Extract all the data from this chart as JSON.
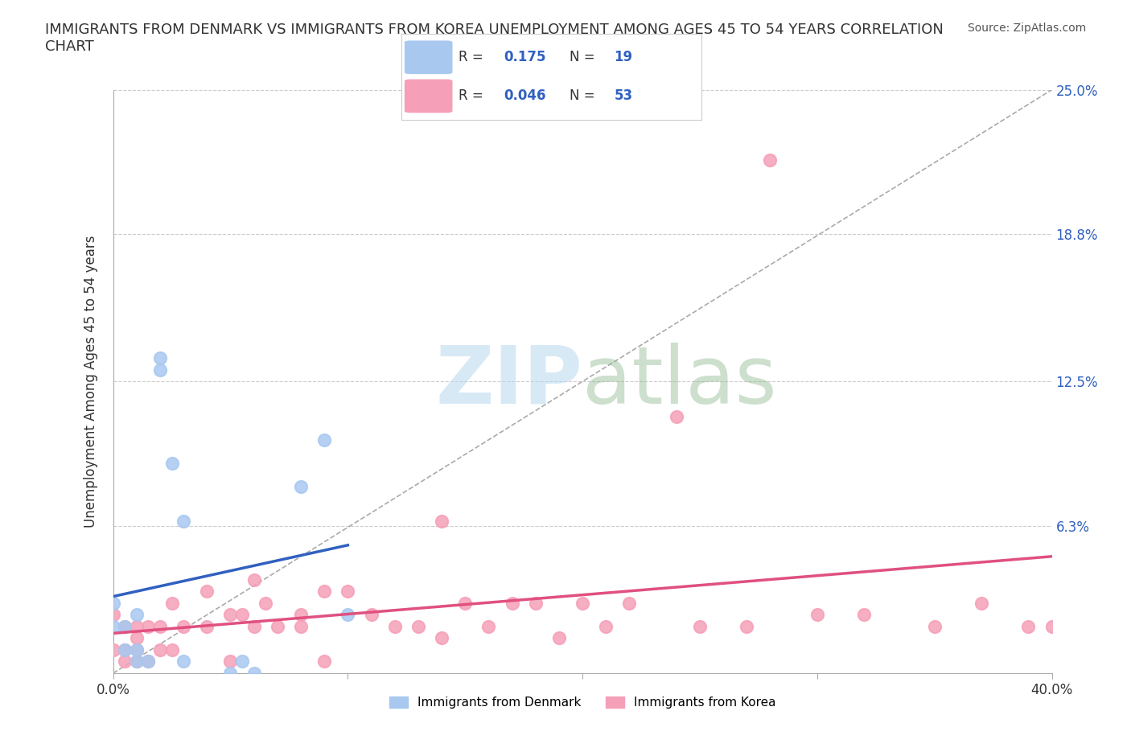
{
  "title": "IMMIGRANTS FROM DENMARK VS IMMIGRANTS FROM KOREA UNEMPLOYMENT AMONG AGES 45 TO 54 YEARS CORRELATION\nCHART",
  "source_text": "Source: ZipAtlas.com",
  "ylabel": "Unemployment Among Ages 45 to 54 years",
  "xlim": [
    0.0,
    0.4
  ],
  "ylim": [
    0.0,
    0.25
  ],
  "xticks": [
    0.0,
    0.1,
    0.2,
    0.3,
    0.4
  ],
  "xticklabels": [
    "0.0%",
    "",
    "",
    "",
    "40.0%"
  ],
  "ytick_positions": [
    0.0,
    0.063,
    0.125,
    0.188,
    0.25
  ],
  "ytick_labels_right": [
    "",
    "6.3%",
    "12.5%",
    "18.8%",
    "25.0%"
  ],
  "denmark_R": 0.175,
  "denmark_N": 19,
  "korea_R": 0.046,
  "korea_N": 53,
  "denmark_color": "#a8c8f0",
  "korea_color": "#f5a0b8",
  "denmark_line_color": "#3060c0",
  "korea_line_color": "#e05080",
  "denmark_scatter_x": [
    0.0,
    0.0,
    0.005,
    0.005,
    0.01,
    0.01,
    0.01,
    0.015,
    0.02,
    0.02,
    0.025,
    0.03,
    0.03,
    0.05,
    0.055,
    0.06,
    0.08,
    0.09,
    0.1
  ],
  "denmark_scatter_y": [
    0.02,
    0.03,
    0.01,
    0.02,
    0.005,
    0.01,
    0.025,
    0.005,
    0.13,
    0.135,
    0.09,
    0.005,
    0.065,
    0.0,
    0.005,
    0.0,
    0.08,
    0.1,
    0.025
  ],
  "korea_scatter_x": [
    0.0,
    0.0,
    0.005,
    0.005,
    0.005,
    0.01,
    0.01,
    0.01,
    0.01,
    0.015,
    0.015,
    0.02,
    0.02,
    0.025,
    0.025,
    0.03,
    0.04,
    0.04,
    0.05,
    0.05,
    0.055,
    0.06,
    0.06,
    0.065,
    0.07,
    0.08,
    0.08,
    0.09,
    0.09,
    0.1,
    0.11,
    0.12,
    0.13,
    0.14,
    0.14,
    0.15,
    0.16,
    0.17,
    0.18,
    0.19,
    0.2,
    0.21,
    0.22,
    0.24,
    0.25,
    0.27,
    0.28,
    0.3,
    0.32,
    0.35,
    0.37,
    0.39,
    0.4
  ],
  "korea_scatter_y": [
    0.01,
    0.025,
    0.005,
    0.01,
    0.02,
    0.005,
    0.01,
    0.015,
    0.02,
    0.005,
    0.02,
    0.01,
    0.02,
    0.01,
    0.03,
    0.02,
    0.02,
    0.035,
    0.005,
    0.025,
    0.025,
    0.02,
    0.04,
    0.03,
    0.02,
    0.02,
    0.025,
    0.005,
    0.035,
    0.035,
    0.025,
    0.02,
    0.02,
    0.015,
    0.065,
    0.03,
    0.02,
    0.03,
    0.03,
    0.015,
    0.03,
    0.02,
    0.03,
    0.11,
    0.02,
    0.02,
    0.22,
    0.025,
    0.025,
    0.02,
    0.03,
    0.02,
    0.02
  ],
  "diagonal_line_x": [
    0.0,
    0.4
  ],
  "diagonal_line_y": [
    0.0,
    0.25
  ],
  "background_color": "#ffffff",
  "grid_color": "#cccccc"
}
